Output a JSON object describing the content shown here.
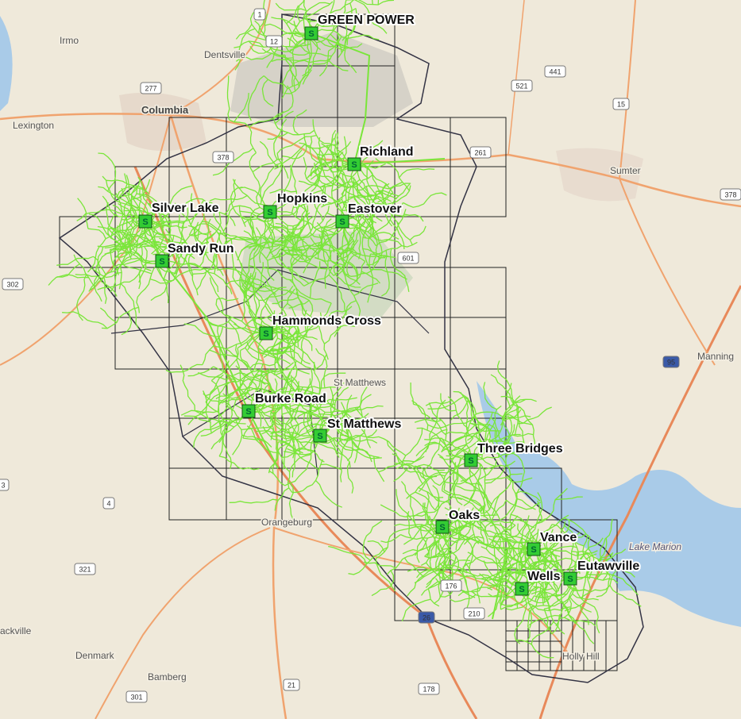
{
  "substation_icon": "S",
  "substations": [
    "GREEN POWER",
    "Richland",
    "Hopkins",
    "Eastover",
    "Silver Lake",
    "Sandy Run",
    "Hammonds Cross",
    "Burke Road",
    "St Matthews",
    "Three Bridges",
    "Oaks",
    "Vance",
    "Eutawville",
    "Wells"
  ],
  "places": [
    "Irmo",
    "Dentsville",
    "Columbia",
    "Lexington",
    "Sumter",
    "Manning",
    "St Matthews",
    "Orangeburg",
    "Lake Marion",
    "Holly Hill",
    "Denmark",
    "Bamberg",
    "ackville"
  ],
  "highways": [
    "1",
    "12",
    "277",
    "378",
    "521",
    "441",
    "15",
    "261",
    "601",
    "302",
    "378",
    "95",
    "3",
    "4",
    "321",
    "26",
    "176",
    "210",
    "178",
    "21",
    "301"
  ]
}
